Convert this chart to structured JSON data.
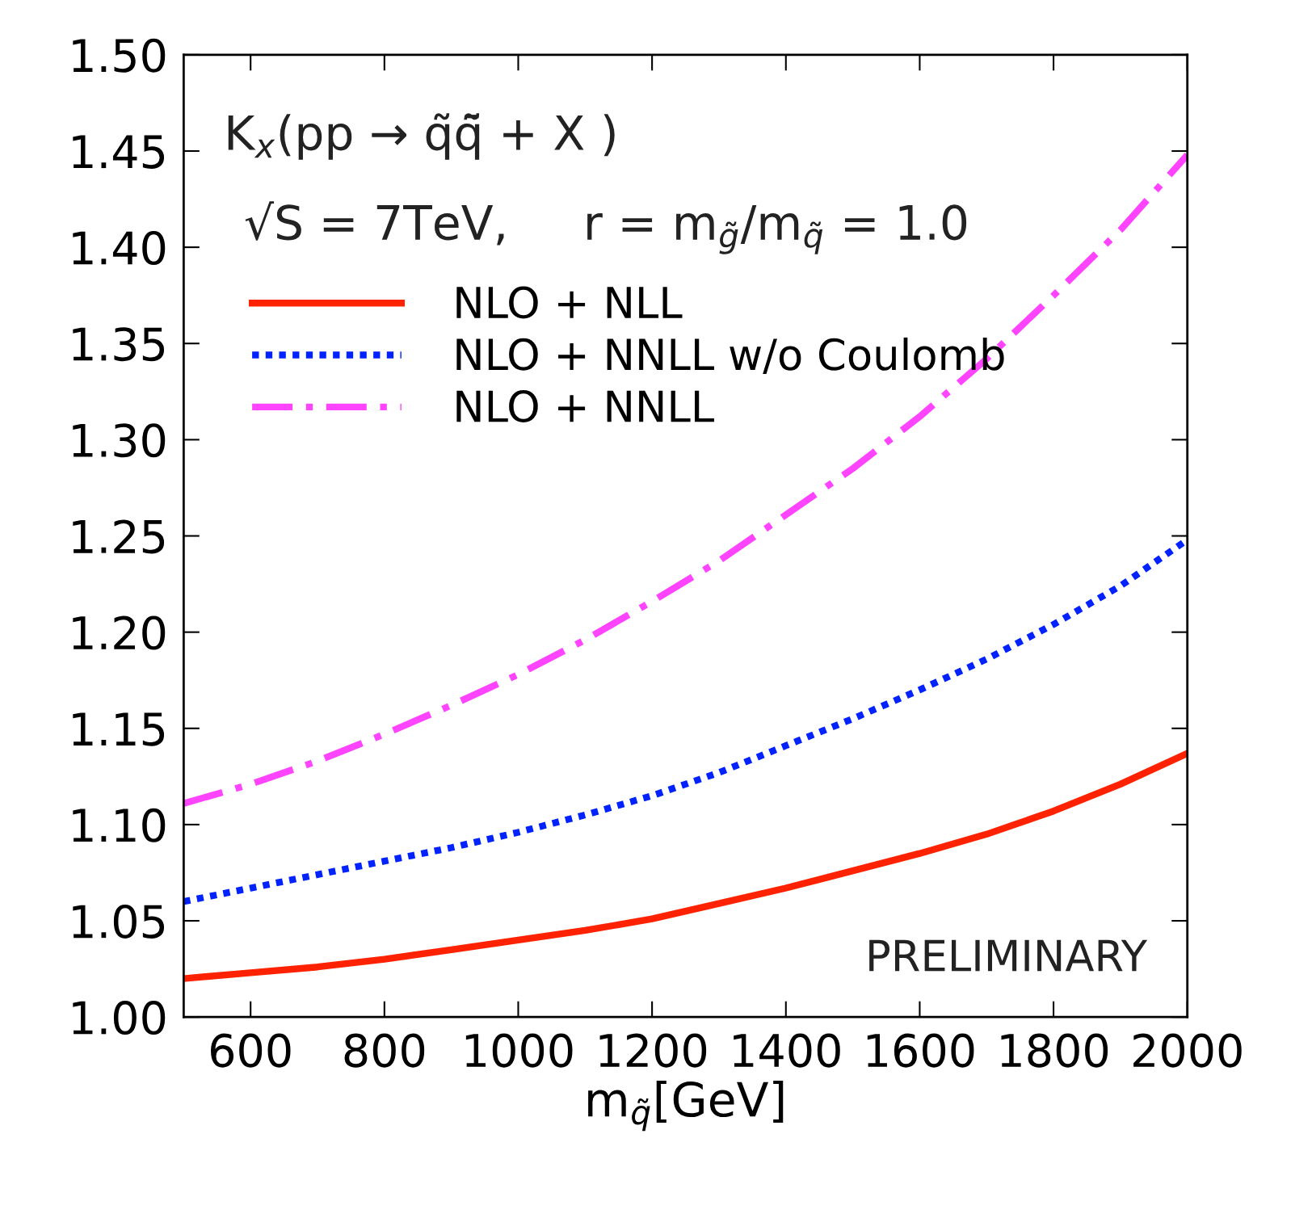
{
  "chart_data": {
    "type": "line",
    "xlabel": "m$_{q̃}$[GeV]",
    "x": [
      500,
      600,
      700,
      800,
      900,
      1000,
      1100,
      1200,
      1300,
      1400,
      1500,
      1600,
      1700,
      1800,
      1900,
      2000
    ],
    "series": [
      {
        "name": "NLO + NLL",
        "color": "#ff2200",
        "line_style": "solid",
        "values": [
          1.02,
          1.023,
          1.026,
          1.03,
          1.035,
          1.04,
          1.045,
          1.051,
          1.059,
          1.067,
          1.076,
          1.085,
          1.095,
          1.107,
          1.121,
          1.137
        ]
      },
      {
        "name": "NLO + NNLL w/o Coulomb",
        "color": "#0022ff",
        "line_style": "dotted",
        "values": [
          1.06,
          1.067,
          1.074,
          1.081,
          1.088,
          1.096,
          1.105,
          1.115,
          1.127,
          1.141,
          1.155,
          1.17,
          1.186,
          1.204,
          1.224,
          1.248
        ]
      },
      {
        "name": "NLO + NNLL",
        "color": "#ff44ff",
        "line_style": "dashdot",
        "values": [
          1.111,
          1.121,
          1.133,
          1.147,
          1.162,
          1.178,
          1.196,
          1.216,
          1.237,
          1.261,
          1.285,
          1.312,
          1.342,
          1.375,
          1.409,
          1.448
        ]
      }
    ],
    "xlim": [
      500,
      2000
    ],
    "xticks": [
      600,
      800,
      1000,
      1200,
      1400,
      1600,
      1800,
      2000
    ],
    "ylim": [
      1.0,
      1.5
    ],
    "yticks": [
      {
        "value": 1.0,
        "label": "1.00"
      },
      {
        "value": 1.05,
        "label": "1.05"
      },
      {
        "value": 1.1,
        "label": "1.10"
      },
      {
        "value": 1.15,
        "label": "1.15"
      },
      {
        "value": 1.2,
        "label": "1.20"
      },
      {
        "value": 1.25,
        "label": "1.25"
      },
      {
        "value": 1.3,
        "label": "1.30"
      },
      {
        "value": 1.35,
        "label": "1.35"
      },
      {
        "value": 1.4,
        "label": "1.40"
      },
      {
        "value": 1.45,
        "label": "1.45"
      },
      {
        "value": 1.5,
        "label": "1.50"
      }
    ],
    "annotations": [
      "K$_{x}$(pp → q̃q̃̄ + X )",
      "√S = 7TeV,     r = m$_{g̃}$/m$_{q̃}$ = 1.0",
      "PRELIMINARY"
    ],
    "legend": "top left",
    "grid": false,
    "marker": "none"
  }
}
